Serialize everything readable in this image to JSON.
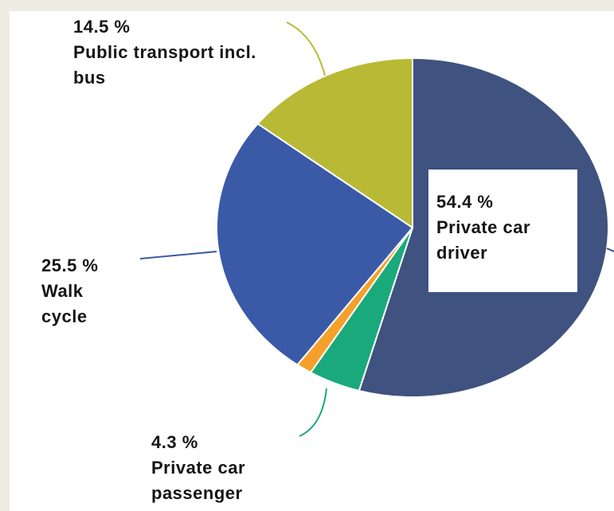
{
  "chart_data": {
    "type": "pie",
    "categories": [
      "Private car driver",
      "Private car passenger",
      null,
      "Walk cycle",
      "Public transport incl. bus"
    ],
    "values": [
      54.4,
      4.3,
      1.3,
      25.5,
      14.5
    ],
    "value_labels": [
      "54.4 %",
      "4.3 %",
      null,
      "25.5 %",
      "14.5 %"
    ],
    "colors": [
      "#3f5280",
      "#1aa97b",
      "#f5a02a",
      "#3a5aa8",
      "#b8ba35"
    ]
  }
}
